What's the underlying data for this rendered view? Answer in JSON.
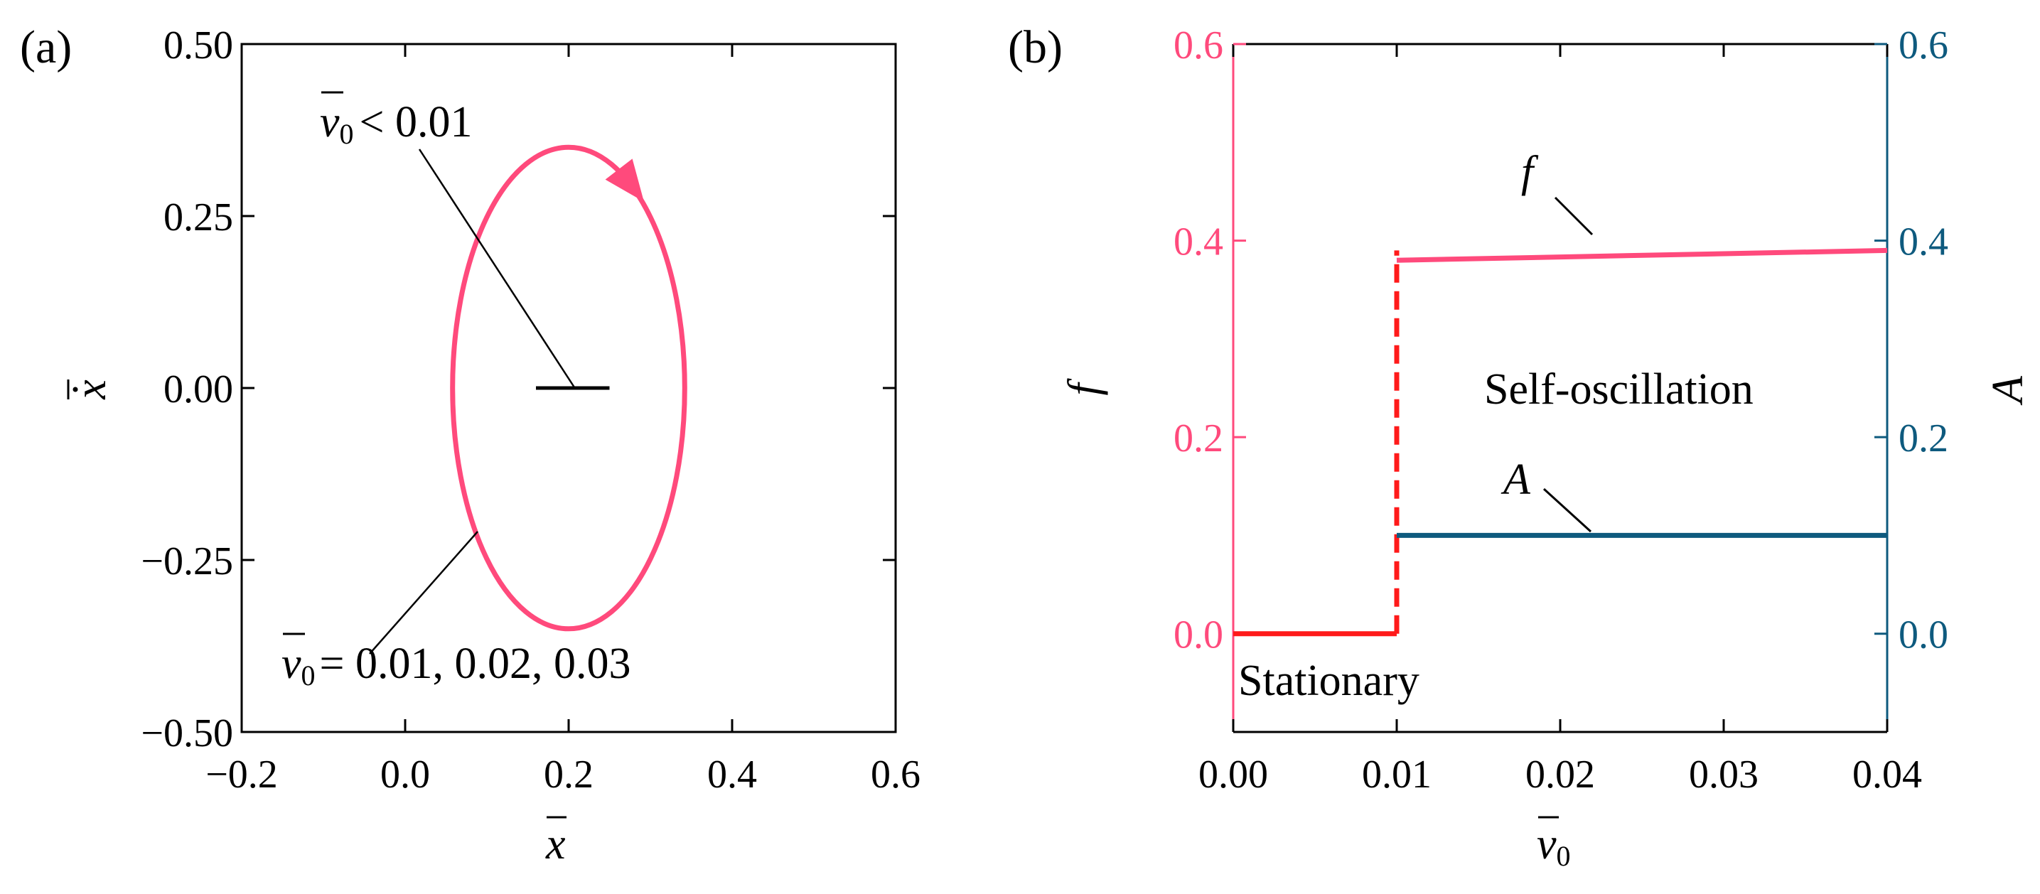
{
  "figure": {
    "colors": {
      "pink": "#ff4a7c",
      "red": "#ff1a1a",
      "blue": "#0e5a7e",
      "black": "#000000"
    }
  },
  "chart_data": [
    {
      "type": "line",
      "panel_label": "(a)",
      "title": "",
      "xlabel": "x",
      "ylabel": "x",
      "xlim": [
        -0.2,
        0.6
      ],
      "ylim": [
        -0.5,
        0.5
      ],
      "xticks": [
        -0.2,
        0.0,
        0.2,
        0.4,
        0.6
      ],
      "xtick_labels": [
        "−0.2",
        "0.0",
        "0.2",
        "0.4",
        "0.6"
      ],
      "yticks": [
        -0.5,
        -0.25,
        0.0,
        0.25,
        0.5
      ],
      "ytick_labels": [
        "−0.50",
        "−0.25",
        "0.00",
        "0.25",
        "0.50"
      ],
      "series": [
        {
          "name": "limit cycle",
          "kind": "ellipse",
          "center": [
            0.2,
            0.0
          ],
          "semi_axes": [
            0.142,
            0.35
          ],
          "direction": "clockwise",
          "annotation_values": "= 0.01, 0.02, 0.03"
        },
        {
          "name": "stationary point",
          "kind": "segment",
          "x": [
            0.16,
            0.25
          ],
          "y": [
            0.0,
            0.0
          ],
          "annotation_values": "< 0.01"
        }
      ],
      "annotations": [
        {
          "symbol": "v",
          "subscript": "0",
          "text": "< 0.01"
        },
        {
          "symbol": "v",
          "subscript": "0",
          "text": "= 0.01, 0.02, 0.03"
        }
      ]
    },
    {
      "type": "line",
      "panel_label": "(b)",
      "title": "",
      "xlabel": "v",
      "xlabel_subscript": "0",
      "ylabel": "f",
      "y2label": "A",
      "xlim": [
        0.0,
        0.04
      ],
      "ylim": [
        -0.1,
        0.6
      ],
      "y2lim": [
        -0.1,
        0.6
      ],
      "xticks": [
        0.0,
        0.01,
        0.02,
        0.03,
        0.04
      ],
      "xtick_labels": [
        "0.00",
        "0.01",
        "0.02",
        "0.03",
        "0.04"
      ],
      "yticks": [
        0.0,
        0.2,
        0.4,
        0.6
      ],
      "ytick_labels": [
        "0.0",
        "0.2",
        "0.4",
        "0.6"
      ],
      "y2ticks": [
        0.0,
        0.2,
        0.4,
        0.6
      ],
      "y2tick_labels": [
        "0.0",
        "0.2",
        "0.4",
        "0.6"
      ],
      "series": [
        {
          "name": "f stationary",
          "x": [
            0.0,
            0.01
          ],
          "y": [
            0.0,
            0.0
          ]
        },
        {
          "name": "f jump",
          "x": [
            0.01,
            0.01
          ],
          "y": [
            0.0,
            0.39
          ],
          "style": "dashed"
        },
        {
          "name": "f",
          "x": [
            0.01,
            0.04
          ],
          "y": [
            0.38,
            0.39
          ]
        },
        {
          "name": "A",
          "x": [
            0.01,
            0.04
          ],
          "y": [
            0.1,
            0.1
          ]
        }
      ],
      "annotations": [
        {
          "text": "f"
        },
        {
          "text": "A"
        },
        {
          "text": "Self-oscillation"
        },
        {
          "text": "Stationary"
        }
      ]
    }
  ]
}
